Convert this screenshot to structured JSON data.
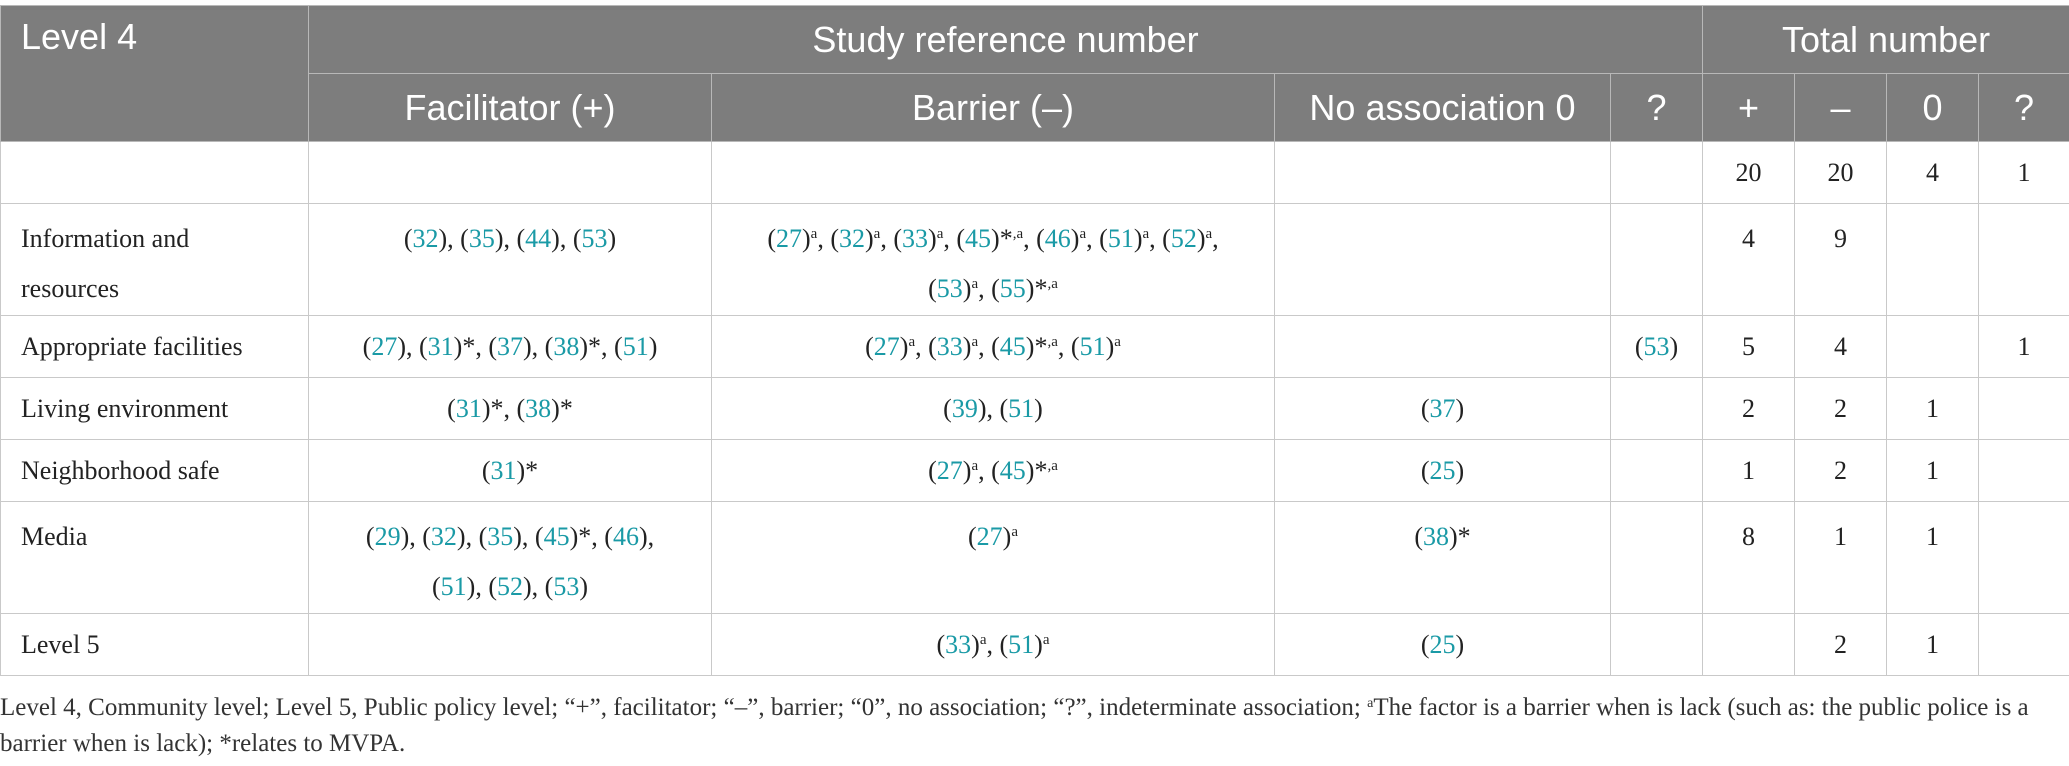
{
  "header": {
    "corner": "Level 4",
    "group_refs": "Study reference number",
    "group_totals": "Total number",
    "cols": [
      "Facilitator (+)",
      "Barrier (–)",
      "No association 0",
      "?",
      "+",
      "–",
      "0",
      "?"
    ]
  },
  "rows": [
    {
      "label": "",
      "fac": [],
      "bar": [],
      "none": [],
      "q": [],
      "tot": [
        "20",
        "20",
        "4",
        "1"
      ]
    },
    {
      "label": "Information and resources",
      "label_lines": [
        "Information and",
        "resources"
      ],
      "fac": [
        [
          "32",
          ""
        ],
        [
          "35",
          ""
        ],
        [
          "44",
          ""
        ],
        [
          "53",
          ""
        ]
      ],
      "bar": [
        [
          "27",
          "a"
        ],
        [
          "32",
          "a"
        ],
        [
          "33",
          "a"
        ],
        [
          "45",
          "*,a"
        ],
        [
          "46",
          "a"
        ],
        [
          "51",
          "a"
        ],
        [
          "52",
          "a"
        ],
        [
          "53",
          "a"
        ],
        [
          "55",
          "*,a"
        ]
      ],
      "bar_break": 7,
      "none": [],
      "q": [],
      "tot": [
        "4",
        "9",
        "",
        ""
      ]
    },
    {
      "label": "Appropriate facilities",
      "fac": [
        [
          "27",
          ""
        ],
        [
          "31",
          "*"
        ],
        [
          "37",
          ""
        ],
        [
          "38",
          "*"
        ],
        [
          "51",
          ""
        ]
      ],
      "bar": [
        [
          "27",
          "a"
        ],
        [
          "33",
          "a"
        ],
        [
          "45",
          "*,a"
        ],
        [
          "51",
          "a"
        ]
      ],
      "none": [],
      "q": [
        [
          "53",
          ""
        ]
      ],
      "tot": [
        "5",
        "4",
        "",
        "1"
      ]
    },
    {
      "label": "Living environment",
      "fac": [
        [
          "31",
          "*"
        ],
        [
          "38",
          "*"
        ]
      ],
      "bar": [
        [
          "39",
          ""
        ],
        [
          "51",
          ""
        ]
      ],
      "none": [
        [
          "37",
          ""
        ]
      ],
      "q": [],
      "tot": [
        "2",
        "2",
        "1",
        ""
      ]
    },
    {
      "label": "Neighborhood safe",
      "fac": [
        [
          "31",
          "*"
        ]
      ],
      "bar": [
        [
          "27",
          "a"
        ],
        [
          "45",
          "*,a"
        ]
      ],
      "none": [
        [
          "25",
          ""
        ]
      ],
      "q": [],
      "tot": [
        "1",
        "2",
        "1",
        ""
      ]
    },
    {
      "label": "Media",
      "fac": [
        [
          "29",
          ""
        ],
        [
          "32",
          ""
        ],
        [
          "35",
          ""
        ],
        [
          "45",
          "*"
        ],
        [
          "46",
          ""
        ],
        [
          "51",
          ""
        ],
        [
          "52",
          ""
        ],
        [
          "53",
          ""
        ]
      ],
      "fac_break": 5,
      "bar": [
        [
          "27",
          "a"
        ]
      ],
      "none": [
        [
          "38",
          "*"
        ]
      ],
      "q": [],
      "tot": [
        "8",
        "1",
        "1",
        ""
      ]
    },
    {
      "label": "Level 5",
      "fac": [],
      "bar": [
        [
          "33",
          "a"
        ],
        [
          "51",
          "a"
        ]
      ],
      "none": [
        [
          "25",
          ""
        ]
      ],
      "q": [],
      "tot": [
        "",
        "2",
        "1",
        ""
      ]
    }
  ],
  "footnote": {
    "part1": "Level 4, Community level; Level 5, Public policy level; “+”, facilitator; “–”, barrier; “0”, no association; “?”, indeterminate association; ",
    "sup": "a",
    "part2": "The factor is a barrier when is lack (such as: the public police is a barrier when is lack); *relates to MVPA."
  },
  "colors": {
    "header_bg": "#7d7d7d",
    "header_text": "#ffffff",
    "ref_link": "#1a9aa6",
    "grid": "#c9c9c9"
  }
}
